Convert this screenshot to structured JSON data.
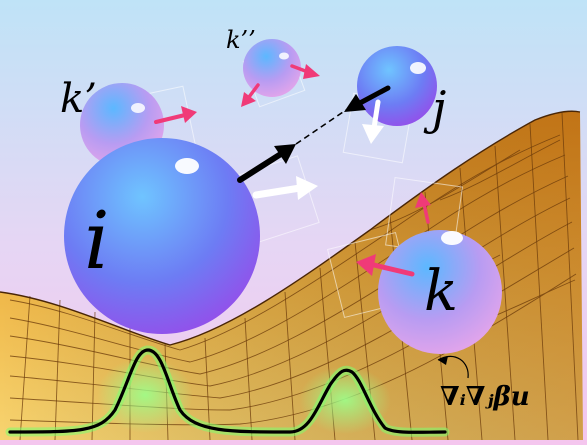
{
  "labels": {
    "i": "i",
    "j": "j",
    "k": "k",
    "k_prime": "k’",
    "k_double_prime": "k’’"
  },
  "formula": "∇ᵢ∇ⱼβu",
  "colors": {
    "sphere_top": "#59a9ff",
    "sphere_bottom": "#c65cf2",
    "surface_light": "#f5c85a",
    "surface_dark": "#c96a16",
    "gaussian_glow": "#7fe07a",
    "pink_arrow": "#f03a78",
    "background_top": "#bfe3f7",
    "background_bottom": "#f2c8f0"
  }
}
